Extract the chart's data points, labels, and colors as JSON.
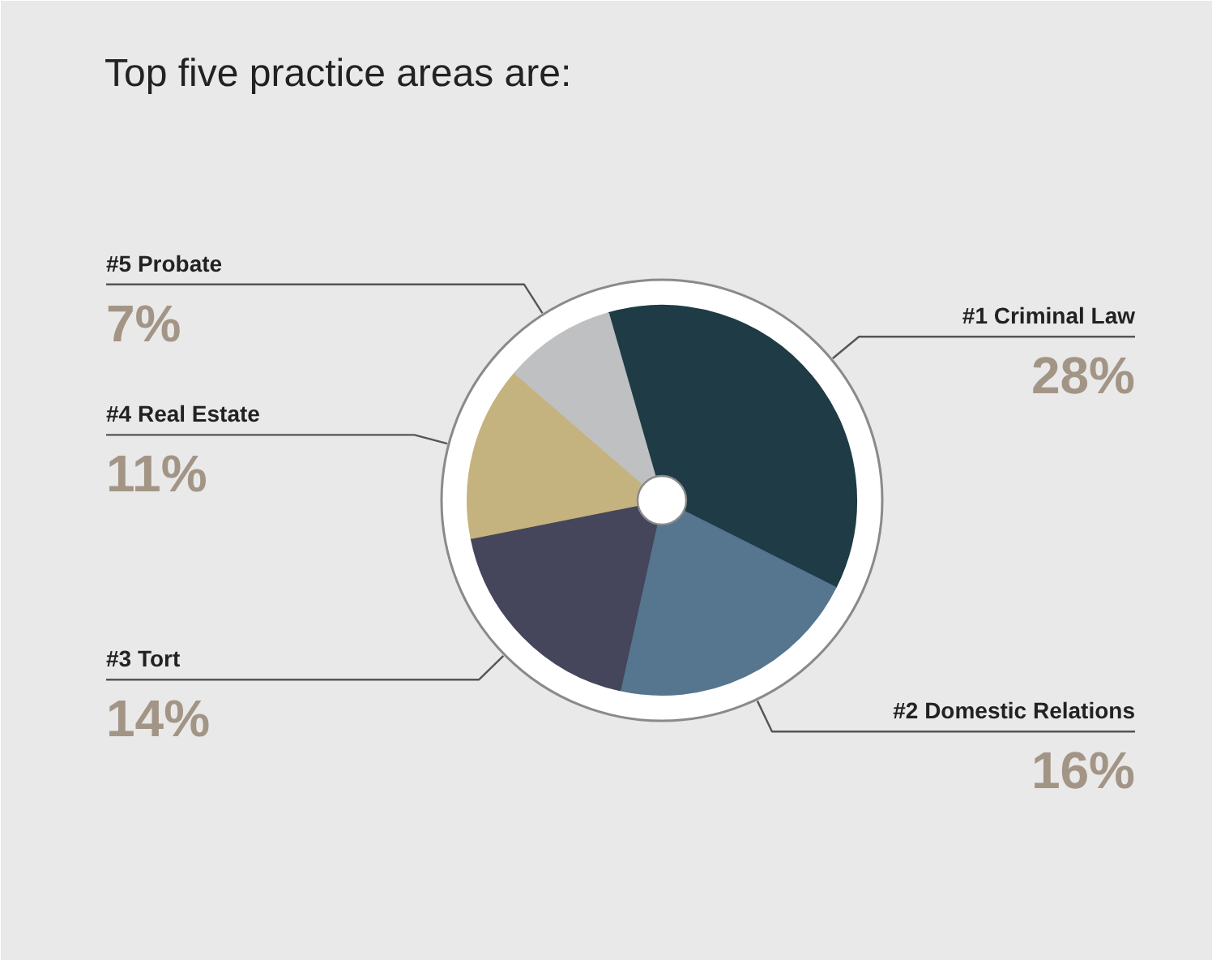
{
  "chart_data": {
    "type": "pie",
    "title": "Top five practice areas are:",
    "categories": [
      "#1 Criminal Law",
      "#2 Domestic Relations",
      "#3 Tort",
      "#4 Real Estate",
      "#5 Probate"
    ],
    "values": [
      28,
      16,
      14,
      11,
      7
    ],
    "colors": [
      "#1f3b45",
      "#56758f",
      "#45455b",
      "#c5b37f",
      "#bfc0c2"
    ],
    "value_labels": [
      "28%",
      "16%",
      "14%",
      "11%",
      "7%"
    ]
  }
}
